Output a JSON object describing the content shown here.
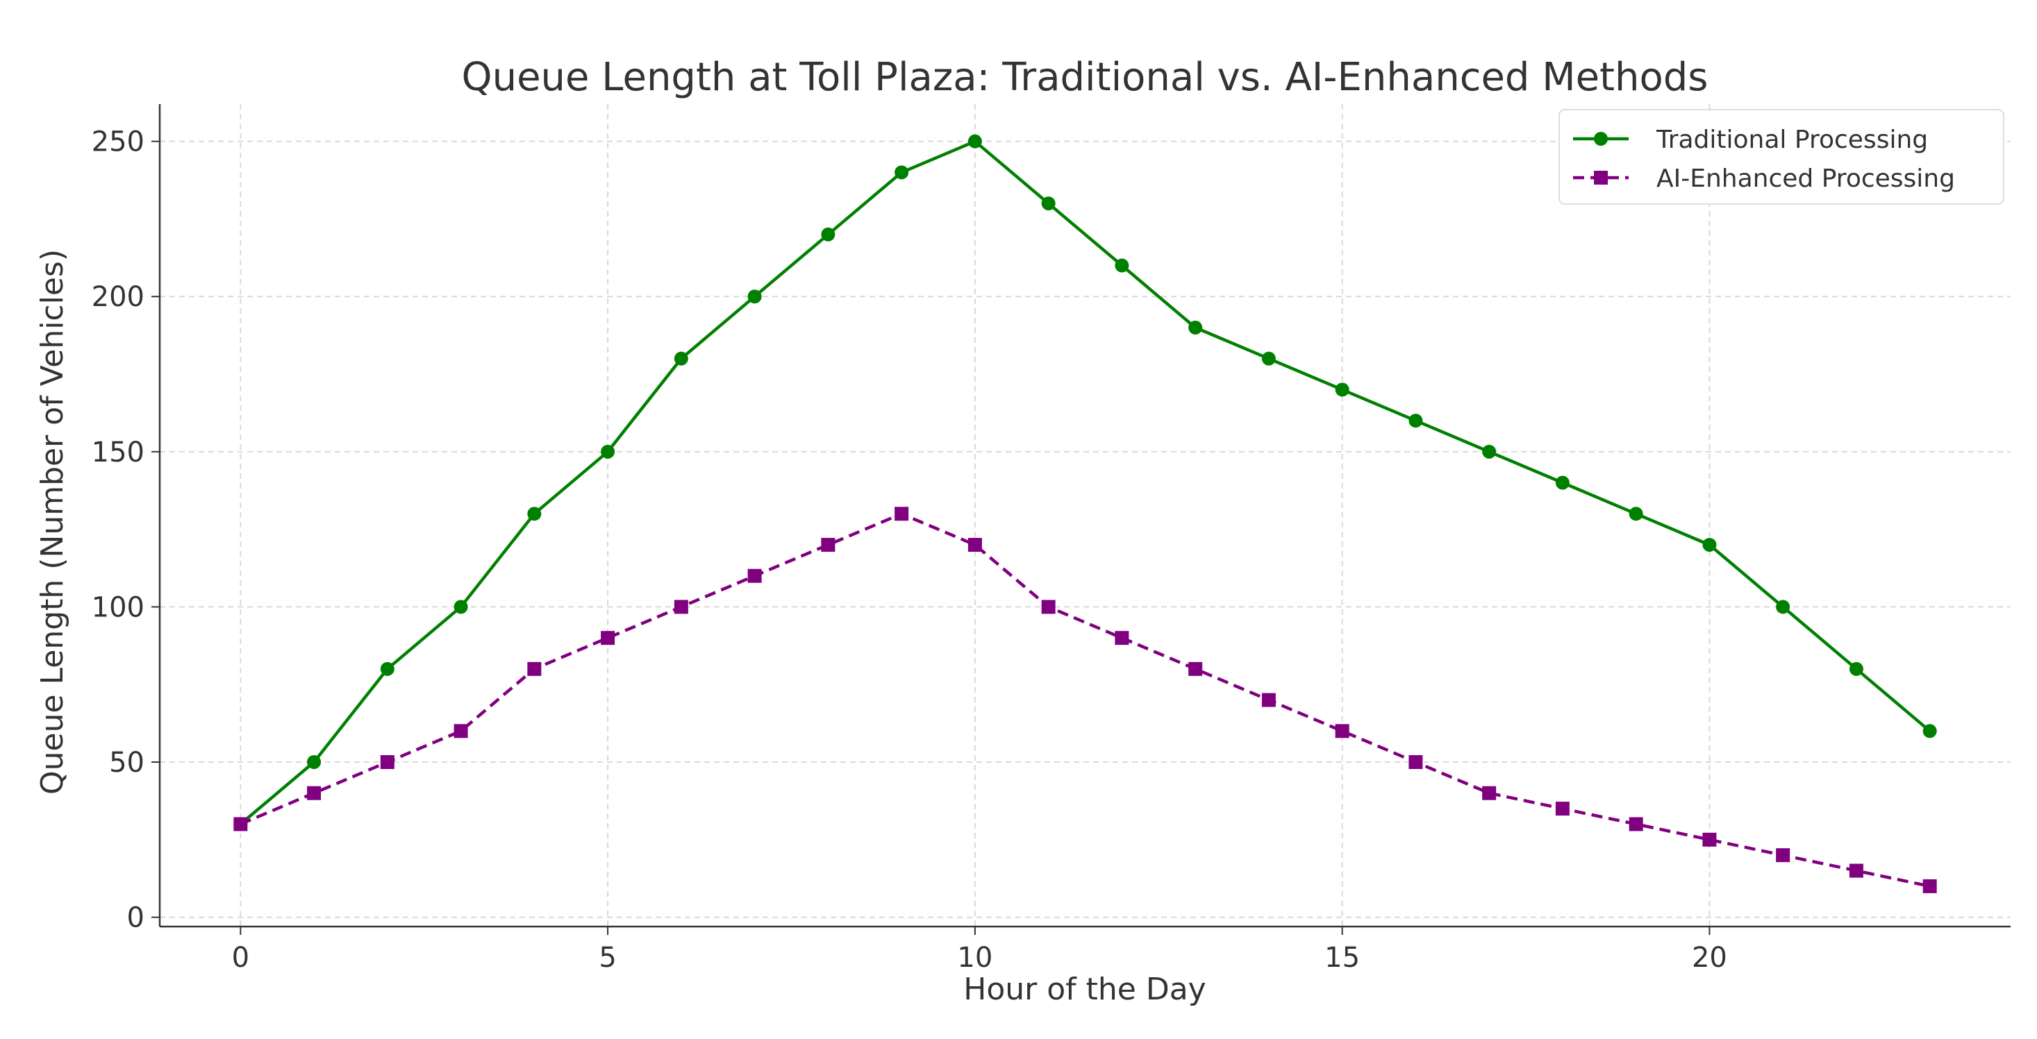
{
  "chart_data": {
    "type": "line",
    "title": "Queue Length at Toll Plaza: Traditional vs. AI-Enhanced Methods",
    "xlabel": "Hour of the Day",
    "ylabel": "Queue Length (Number of Vehicles)",
    "xlim": [
      -1.1,
      24.1
    ],
    "ylim": [
      -3,
      262
    ],
    "xticks": [
      0,
      5,
      10,
      15,
      20
    ],
    "yticks": [
      0,
      50,
      100,
      150,
      200,
      250
    ],
    "grid": true,
    "legend_position": "top-right",
    "x": [
      0,
      1,
      2,
      3,
      4,
      5,
      6,
      7,
      8,
      9,
      10,
      11,
      12,
      13,
      14,
      15,
      16,
      17,
      18,
      19,
      20,
      21,
      22,
      23
    ],
    "series": [
      {
        "name": "Traditional Processing",
        "color": "#008000",
        "line_style": "solid",
        "marker": "circle",
        "values": [
          30,
          50,
          80,
          100,
          130,
          150,
          180,
          200,
          220,
          240,
          250,
          230,
          210,
          190,
          180,
          170,
          160,
          150,
          140,
          130,
          120,
          100,
          80,
          60
        ]
      },
      {
        "name": "AI-Enhanced Processing",
        "color": "#800080",
        "line_style": "dashed",
        "marker": "square",
        "values": [
          30,
          40,
          50,
          60,
          80,
          90,
          100,
          110,
          120,
          130,
          120,
          100,
          90,
          80,
          70,
          60,
          50,
          40,
          35,
          30,
          25,
          20,
          15,
          10
        ]
      }
    ]
  }
}
